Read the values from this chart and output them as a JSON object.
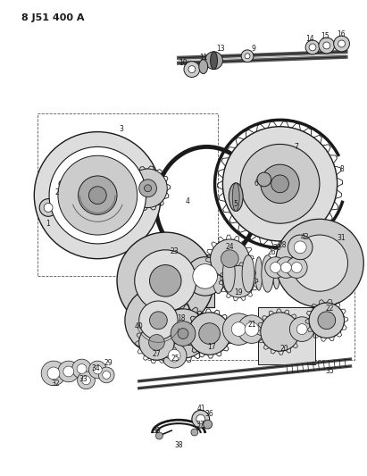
{
  "title": "8 J51 400 A",
  "bg_color": "#ffffff",
  "fig_width": 4.11,
  "fig_height": 5.33,
  "dpi": 100
}
